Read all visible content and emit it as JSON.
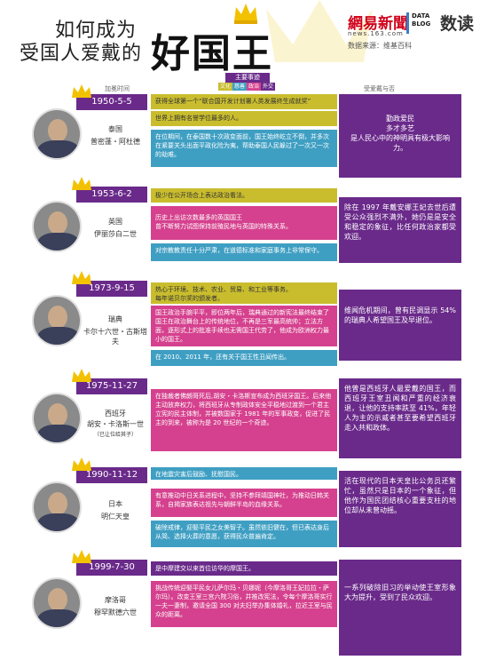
{
  "header": {
    "title_line1": "如何成为",
    "title_line2": "受国人爱戴的",
    "title_big": "好国王",
    "brand": "網易新聞",
    "brand_url": "news.163.com",
    "datablog": "DATA BLOG",
    "shudu": "数读",
    "source": "数据来源：维基百科"
  },
  "columns": {
    "coronation": "加冕时间",
    "main_events": "主要事迹",
    "legend": [
      "文化",
      "慈善",
      "政治",
      "外交"
    ],
    "rating": "受爱戴与否"
  },
  "colors": {
    "purple": "#6a2a8a",
    "yellow": "#c9bd2e",
    "blue": "#3f9fc3",
    "pink": "#d5418e"
  },
  "rows": [
    {
      "date": "1950-5-5",
      "country": "泰国",
      "king": "普密蓬・阿杜德",
      "note": "",
      "events": [
        "获得全球第一个“联合国开发计划署人类发展终生成就奖”",
        "世界上拥有名誉学位最多的人。",
        "在位期间，在泰国数十次政变面前，国王始终屹立不倒，并多次在紧要关头出面平政化险为夷，帮助泰国人民躲过了一次又一次的劫难。"
      ],
      "rating": "勤政爱民\n多才多艺\n是人民心中的神明具有极大影响力。"
    },
    {
      "date": "1953-6-2",
      "country": "英国",
      "king": "伊丽莎白二世",
      "note": "",
      "events": [
        "极少在公开场合上表达政治看法。",
        "历史上出访次数最多的英国国王\n曾不断努力试图保持前殖民地与英国的特殊关系。",
        "对宗教教责任十分严肃，在道德标准和家庭事务上非常保守。"
      ],
      "rating": "除在 1997 年戴安娜王妃去世后遭受公众强烈不满外，她仍是是安全和稳定的象征，比任何政治家都受欢迎。"
    },
    {
      "date": "1973-9-15",
      "country": "瑞典",
      "king": "卡尔十六世・古斯塔夫",
      "note": "",
      "events": [
        "热心于环境、技术、农业、贸易、和工业等事务。\n每年诺贝尔奖的颁发者。",
        "国王政治手腕平平，即位两年后，瑞典通过的新宪法最终结束了国王在政治舞台上的传统地位，不再是三军最高统帅；立法方面，逐形式上的批准手续也无需国王代劳了，他成为欧洲权力最小的国王。",
        "在 2010、2011 年，还有关于国王性丑闻传出。"
      ],
      "rating": "维闻危机期间，曾有民调显示 54% 的瑞典人希望国王及早退位。"
    },
    {
      "date": "1975-11-27",
      "country": "西班牙",
      "king": "胡安・卡洛斯一世",
      "note": "（已让位给其子）",
      "events": [
        "在独裁者佛朗哥死后,胡安・卡洛斯宣布成为西班牙国王。后来他主动放弃权力，将西班牙从专制政体安全平稳地过渡到一个君主立宪的民主体制，并被数国家于 1981 年的军事政变，促进了民主的到来，被称为是 20 世纪的一个奇迹。"
      ],
      "rating": "他曾是西班牙人最爱戴的国王，而西班牙王室丑闻和严重的经济衰退，让他的支持率跌至 41%，年轻人为主的示威者甚至要希望西班牙走入共和政体。"
    },
    {
      "date": "1990-11-12",
      "country": "日本",
      "king": "明仁天皇",
      "note": "",
      "events": [
        "在地震灾害后鼓励、抚慰国民。",
        "有意推动中日关系进程中，坚持不参拜靖国神社，为推动日韩关系，自揭家族表达祖先与朝鲜半岛的血缘关系。",
        "破除戒律，迎娶平民之女美智子。虽然依旧健在，但已表达身后从简、选择火葬的意愿，获得民众普遍肯定。"
      ],
      "rating": "活在现代的日本天皇比公务员还繁忙，虽然只是日本的一个象征，但他作为国民团结核心重要支柱的地位却从未曾动摇。"
    },
    {
      "date": "1999-7-30",
      "country": "摩洛哥",
      "king": "穆罕默德六世",
      "note": "",
      "events": [
        "是中摩建交以来首位访华的摩国王。",
        "挑战传统迎娶平民女儿萨尔玛・贝娜妮（今摩洛哥王妃拉拉・萨尔玛）。改变王室三宫六院习俗，并推改宪法，令每个摩洛哥实行一夫一妻制，邀请全国 300 对夫妇举办集体婚礼，拉近王室与民众的距离。"
      ],
      "rating": "一系列破除旧习的举动使王室形象大为提升，受到了民众欢迎。"
    }
  ]
}
